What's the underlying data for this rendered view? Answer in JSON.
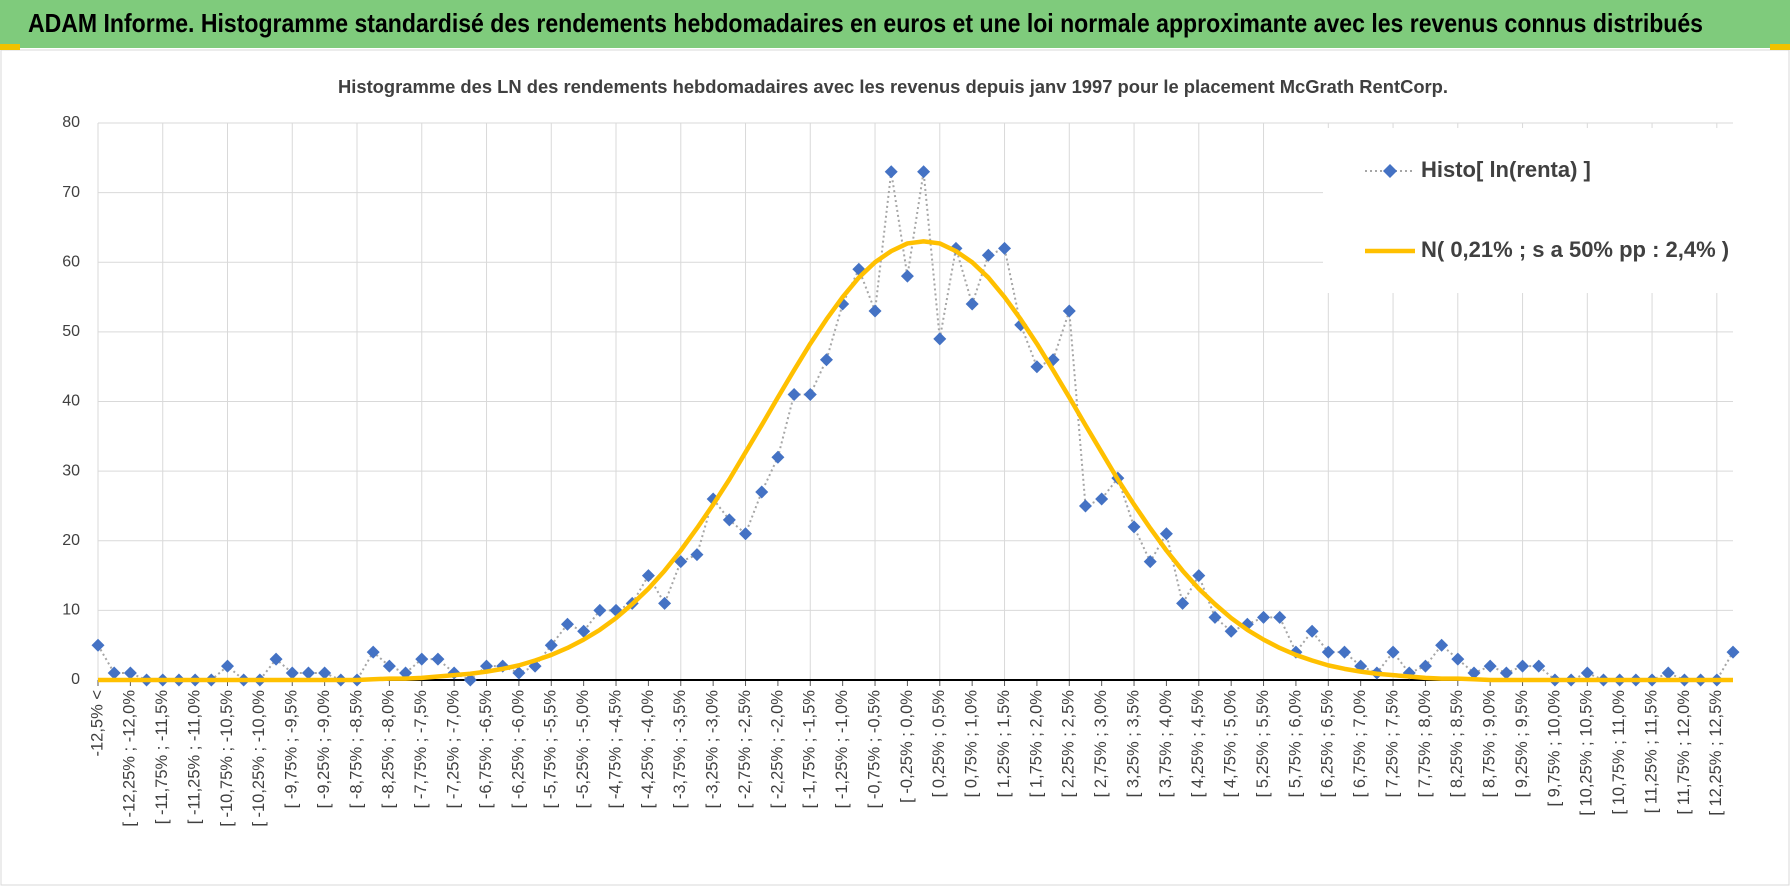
{
  "header": {
    "title": "ADAM Informe. Histogramme standardisé des rendements hebdomadaires en euros et une loi normale approximante avec les revenus connus distribués"
  },
  "chart_data": {
    "type": "line",
    "title": "Histogramme des LN des rendements hebdomadaires avec les revenus depuis janv 1997 pour le placement McGrath RentCorp.",
    "categories": [
      "-12,5% <",
      null,
      "[ -12,25% ; -12,0%",
      null,
      "[ -11,75% ; -11,5%",
      null,
      "[ -11,25% ; -11,0%",
      null,
      "[ -10,75% ; -10,5%",
      null,
      "[ -10,25% ; -10,0%",
      null,
      "[ -9,75% ; -9,5%",
      null,
      "[ -9,25% ; -9,0%",
      null,
      "[ -8,75% ; -8,5%",
      null,
      "[ -8,25% ; -8,0%",
      null,
      "[ -7,75% ; -7,5%",
      null,
      "[ -7,25% ; -7,0%",
      null,
      "[ -6,75% ; -6,5%",
      null,
      "[ -6,25% ; -6,0%",
      null,
      "[ -5,75% ; -5,5%",
      null,
      "[ -5,25% ; -5,0%",
      null,
      "[ -4,75% ; -4,5%",
      null,
      "[ -4,25% ; -4,0%",
      null,
      "[ -3,75% ; -3,5%",
      null,
      "[ -3,25% ; -3,0%",
      null,
      "[ -2,75% ; -2,5%",
      null,
      "[ -2,25% ; -2,0%",
      null,
      "[ -1,75% ; -1,5%",
      null,
      "[ -1,25% ; -1,0%",
      null,
      "[ -0,75% ; -0,5%",
      null,
      "[ -0,25% ; 0,0%",
      null,
      "[ 0,25% ; 0,5%",
      null,
      "[ 0,75% ; 1,0%",
      null,
      "[ 1,25% ; 1,5%",
      null,
      "[ 1,75% ; 2,0%",
      null,
      "[ 2,25% ; 2,5%",
      null,
      "[ 2,75% ; 3,0%",
      null,
      "[ 3,25% ; 3,5%",
      null,
      "[ 3,75% ; 4,0%",
      null,
      "[ 4,25% ; 4,5%",
      null,
      "[ 4,75% ; 5,0%",
      null,
      "[ 5,25% ; 5,5%",
      null,
      "[ 5,75% ; 6,0%",
      null,
      "[ 6,25% ; 6,5%",
      null,
      "[ 6,75% ; 7,0%",
      null,
      "[ 7,25% ; 7,5%",
      null,
      "[ 7,75% ; 8,0%",
      null,
      "[ 8,25% ; 8,5%",
      null,
      "[ 8,75% ; 9,0%",
      null,
      "[ 9,25% ; 9,5%",
      null,
      "[ 9,75% ; 10,0%",
      null,
      "[ 10,25% ; 10,5%",
      null,
      "[ 10,75% ; 11,0%",
      null,
      "[ 11,25% ; 11,5%",
      null,
      "[ 11,75% ; 12,0%",
      null,
      "[ 12,25% ; 12,5%",
      null
    ],
    "series": [
      {
        "name": "Histo[ ln(renta) ]",
        "color": "#4472c4",
        "line_color": "#a6a6a6",
        "marker": "diamond",
        "values": [
          5,
          1,
          1,
          0,
          0,
          0,
          0,
          0,
          2,
          0,
          0,
          3,
          1,
          1,
          1,
          0,
          0,
          4,
          2,
          1,
          3,
          3,
          1,
          0,
          2,
          2,
          1,
          2,
          5,
          8,
          7,
          10,
          10,
          11,
          15,
          11,
          17,
          18,
          26,
          23,
          21,
          27,
          32,
          41,
          41,
          46,
          54,
          59,
          53,
          73,
          58,
          73,
          49,
          62,
          54,
          61,
          62,
          51,
          45,
          46,
          53,
          25,
          26,
          29,
          22,
          17,
          21,
          11,
          15,
          9,
          7,
          8,
          9,
          9,
          4,
          7,
          4,
          4,
          2,
          1,
          4,
          1,
          2,
          5,
          3,
          1,
          2,
          1,
          2,
          2,
          0,
          0,
          1,
          0,
          0,
          0,
          0,
          1,
          0,
          0,
          0,
          4
        ]
      },
      {
        "name": "N( 0,21% ; s a 50% pp : 2,4% )",
        "color": "#ffc000",
        "marker": "none",
        "values": [
          0,
          0,
          0,
          0,
          0,
          0,
          0,
          0,
          0,
          0,
          0,
          0,
          0,
          0,
          0,
          0,
          0,
          0.1,
          0.2,
          0.2,
          0.3,
          0.5,
          0.7,
          0.9,
          1.2,
          1.6,
          2.1,
          2.8,
          3.6,
          4.6,
          5.8,
          7.2,
          8.9,
          10.9,
          13.1,
          15.7,
          18.6,
          21.8,
          25.2,
          28.8,
          32.7,
          36.6,
          40.6,
          44.5,
          48.3,
          51.8,
          55.0,
          57.8,
          60.0,
          61.6,
          62.7,
          63,
          62.7,
          61.6,
          60.0,
          57.8,
          55.0,
          51.8,
          48.3,
          44.5,
          40.6,
          36.6,
          32.7,
          28.8,
          25.2,
          21.8,
          18.6,
          15.7,
          13.1,
          10.9,
          8.9,
          7.2,
          5.8,
          4.6,
          3.6,
          2.8,
          2.1,
          1.6,
          1.2,
          0.9,
          0.7,
          0.5,
          0.3,
          0.2,
          0.2,
          0.1,
          0,
          0,
          0,
          0,
          0,
          0,
          0,
          0,
          0,
          0,
          0,
          0,
          0,
          0,
          0,
          0
        ]
      }
    ],
    "ylim": [
      0,
      80
    ],
    "yticks": [
      0,
      10,
      20,
      30,
      40,
      50,
      60,
      70,
      80
    ],
    "grid": true,
    "legend": "upper right"
  }
}
